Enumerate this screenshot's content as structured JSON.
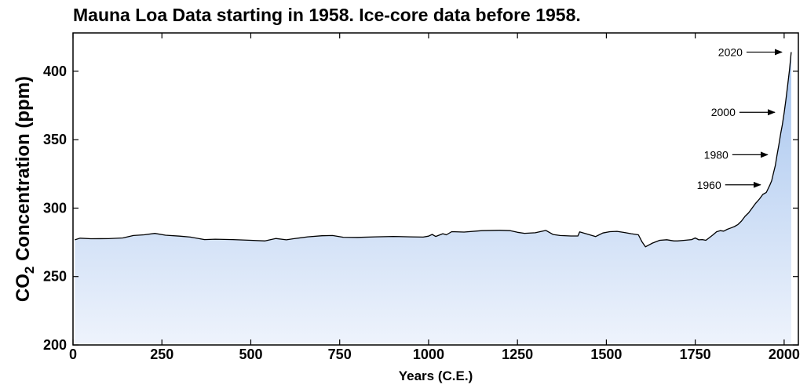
{
  "chart_data": {
    "type": "area",
    "title": "Mauna Loa Data starting in 1958. Ice-core data before 1958.",
    "xlabel": "Years (C.E.)",
    "ylabel": "CO₂ Concentration (ppm)",
    "ylabel_parts": {
      "prefix": "CO",
      "subscript": "2",
      "suffix": " Concentration (ppm)"
    },
    "xlim": [
      0,
      2040
    ],
    "ylim": [
      200,
      428
    ],
    "x_ticks": [
      0,
      250,
      500,
      750,
      1000,
      1250,
      1500,
      1750,
      2000
    ],
    "x_tick_labels": [
      "0",
      "250",
      "500",
      "750",
      "1000",
      "1250",
      "1500",
      "1750",
      "2000"
    ],
    "y_ticks": [
      200,
      250,
      300,
      350,
      400
    ],
    "y_tick_labels": [
      "200",
      "250",
      "300",
      "350",
      "400"
    ],
    "grid": false,
    "fill_gradient": {
      "top": "#a5c4ee",
      "bottom": "#eef3fc"
    },
    "line_color": "#000000",
    "series": [
      {
        "x": [
          5,
          20,
          50,
          100,
          140,
          170,
          200,
          230,
          260,
          300,
          330,
          370,
          400,
          450,
          500,
          540,
          570,
          600,
          620,
          660,
          700,
          730,
          760,
          800,
          850,
          900,
          950,
          985,
          1000,
          1010,
          1020,
          1040,
          1050,
          1065,
          1100,
          1150,
          1200,
          1230,
          1250,
          1270,
          1300,
          1330,
          1350,
          1370,
          1400,
          1420,
          1425,
          1440,
          1470,
          1490,
          1510,
          1530,
          1550,
          1570,
          1590,
          1600,
          1610,
          1630,
          1650,
          1670,
          1690,
          1700,
          1720,
          1740,
          1750,
          1760,
          1770,
          1780,
          1790,
          1800,
          1810,
          1820,
          1830,
          1840,
          1850,
          1860,
          1870,
          1880,
          1890,
          1900,
          1910,
          1920,
          1930,
          1940,
          1950,
          1960,
          1965,
          1970,
          1975,
          1980,
          1985,
          1990,
          1995,
          2000,
          2005,
          2010,
          2015,
          2020
        ],
        "y": [
          276.8,
          278.0,
          277.6,
          277.7,
          278.2,
          280.0,
          280.5,
          281.5,
          280.2,
          279.5,
          278.8,
          277.0,
          277.3,
          277.0,
          276.5,
          276.0,
          277.8,
          276.8,
          277.6,
          279.0,
          279.8,
          280.0,
          278.7,
          278.6,
          279.0,
          279.3,
          279.0,
          278.8,
          279.5,
          280.8,
          279.3,
          281.3,
          280.5,
          282.8,
          282.5,
          283.5,
          283.8,
          283.5,
          282.3,
          281.6,
          282.0,
          283.7,
          280.7,
          280.0,
          279.6,
          279.6,
          282.6,
          281.5,
          279.2,
          281.8,
          282.8,
          283.0,
          282.2,
          281.3,
          280.5,
          275.5,
          271.7,
          274.5,
          276.5,
          276.9,
          276.0,
          276.0,
          276.5,
          277.0,
          278.2,
          276.8,
          277.0,
          276.5,
          278.5,
          280.5,
          282.7,
          283.5,
          283.2,
          284.5,
          285.5,
          286.5,
          288.0,
          290.5,
          294.0,
          296.5,
          300.0,
          303.5,
          306.5,
          310.0,
          311.5,
          317.0,
          320.0,
          325.7,
          331.0,
          338.7,
          346.0,
          354.2,
          361.0,
          369.6,
          379.0,
          389.9,
          401.0,
          414.0
        ]
      }
    ],
    "annotations": [
      {
        "text": "2020",
        "x": 2020,
        "y": 414
      },
      {
        "text": "2000",
        "x": 2000,
        "y": 370
      },
      {
        "text": "1980",
        "x": 1980,
        "y": 339
      },
      {
        "text": "1960",
        "x": 1960,
        "y": 317
      }
    ]
  }
}
